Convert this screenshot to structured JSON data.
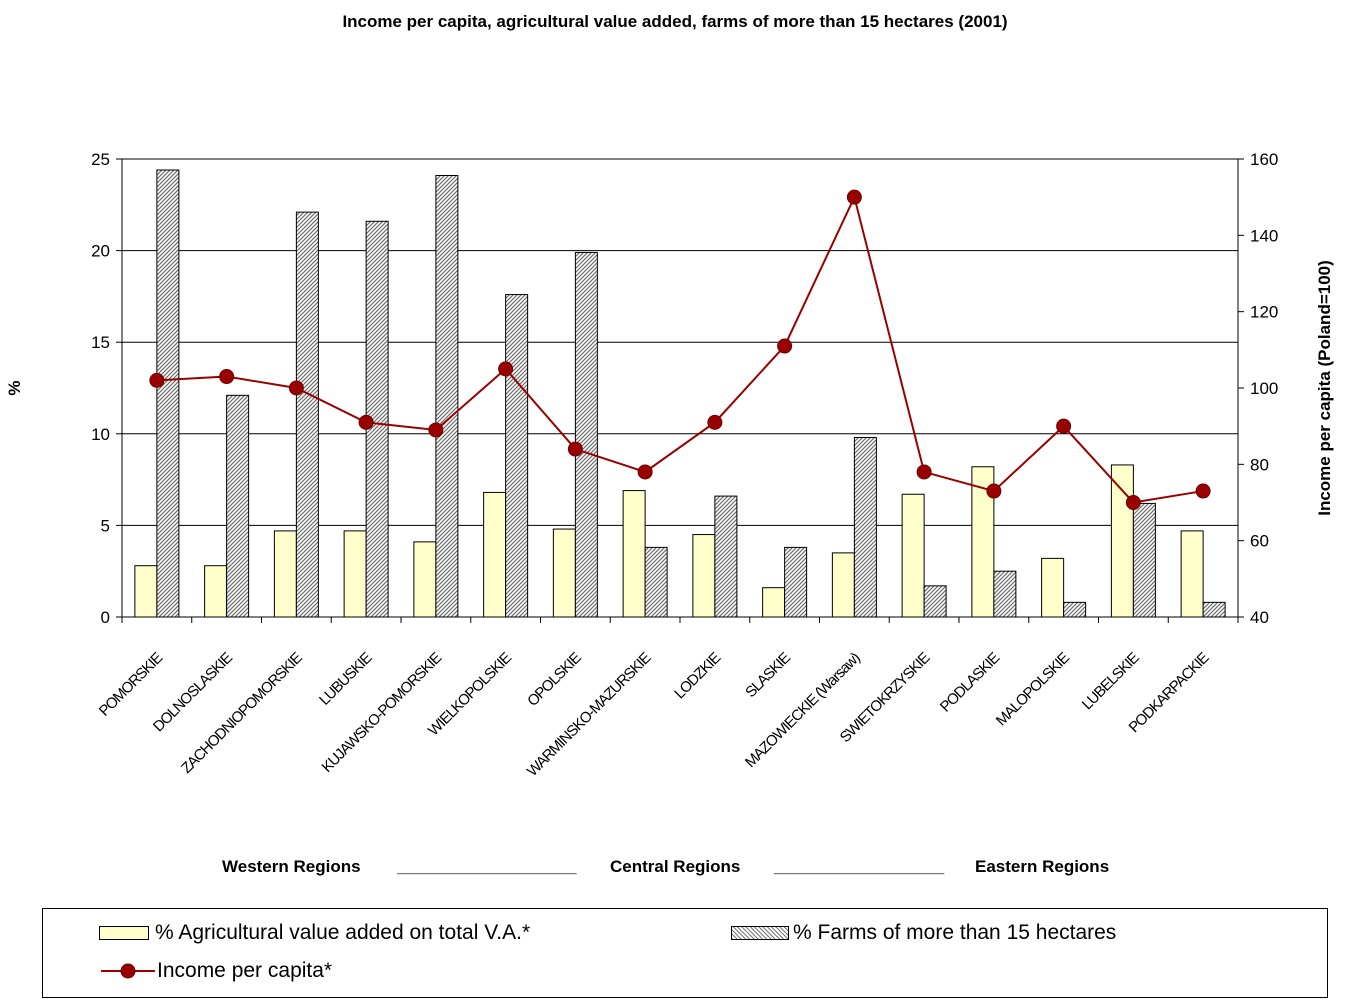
{
  "chart_data": {
    "type": "bar",
    "title": "Income per capita, agricultural value added, farms of more than 15 hectares (2001)",
    "ylabel": "%",
    "y2label": "Income per capita (Poland=100)",
    "ylim": [
      0,
      25
    ],
    "y2lim": [
      40,
      160
    ],
    "yticks": [
      "0",
      "5",
      "10",
      "15",
      "20",
      "25"
    ],
    "y2ticks": [
      "40",
      "60",
      "80",
      "100",
      "120",
      "140",
      "160"
    ],
    "grid": true,
    "legend_position": "bottom",
    "categories": [
      "POMORSKIE",
      "DOLNOSLASKIE",
      "ZACHODNIOPOMORSKIE",
      "LUBUSKIE",
      "KUJAWSKO-POMORSKIE",
      "WIELKOPOLSKIE",
      "OPOLSKIE",
      "WARMINSKO-MAZURSKIE",
      "LODZKIE",
      "SLASKIE",
      "MAZOWIECKIE (Warsaw)",
      "SWIETOKRZYSKIE",
      "PODLASKIE",
      "MALOPOLSKIE",
      "LUBELSKIE",
      "PODKARPACKIE"
    ],
    "series": [
      {
        "name": "% Agricultural value added on total V.A.*",
        "type": "bar",
        "axis": "left",
        "color": "#ffffcc",
        "values": [
          2.8,
          2.8,
          4.7,
          4.7,
          4.1,
          6.8,
          4.8,
          6.9,
          4.5,
          1.6,
          3.5,
          6.7,
          8.2,
          3.2,
          8.3,
          4.7
        ]
      },
      {
        "name": "% Farms of more than 15 hectares",
        "type": "bar",
        "axis": "left",
        "pattern": "hatch",
        "color": "#7a7a7a",
        "values": [
          24.4,
          12.1,
          22.1,
          21.6,
          24.1,
          17.6,
          19.9,
          3.8,
          6.6,
          3.8,
          9.8,
          1.7,
          2.5,
          0.8,
          6.2,
          0.8
        ]
      },
      {
        "name": "Income per capita*",
        "type": "line",
        "axis": "right",
        "color": "#990000",
        "values": [
          102,
          103,
          100,
          91,
          89,
          105,
          84,
          78,
          91,
          111,
          150,
          78,
          73,
          90,
          70,
          73
        ]
      }
    ],
    "annotations": {
      "western": "Western Regions",
      "sep1": "___________________",
      "central": "Central Regions",
      "sep2": "__________________",
      "eastern": "Eastern Regions"
    }
  }
}
